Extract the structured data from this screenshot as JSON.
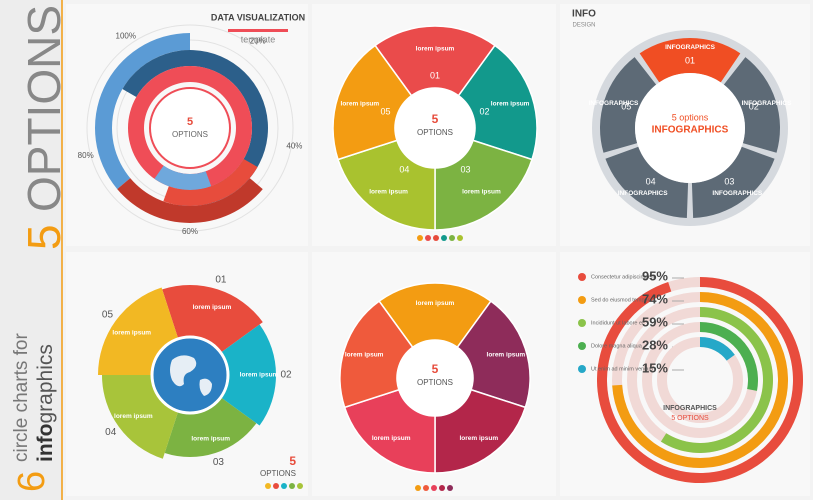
{
  "sidebar": {
    "count": "6",
    "line1": "circle charts for",
    "line2_bold": "info",
    "line2_rest": "graphics",
    "options_number": "5",
    "options_word": "OPTIONS"
  },
  "panels": [
    {
      "title": "DATA VISUALIZATION",
      "subtitle": "template",
      "center_number": "5",
      "center_word": "OPTIONS",
      "ring_labels": [
        "100%",
        "20%",
        "40%",
        "60%",
        "80%"
      ]
    },
    {
      "center_number": "5",
      "center_word": "OPTIONS",
      "segments": [
        {
          "number": "01",
          "text": "lorem ipsum"
        },
        {
          "number": "02",
          "text": "lorem ipsum"
        },
        {
          "number": "03",
          "text": "lorem ipsum"
        },
        {
          "number": "04",
          "text": "lorem ipsum"
        },
        {
          "number": "05",
          "text": "lorem ipsum"
        }
      ]
    },
    {
      "logo": "INFO",
      "logo_sub": "DESIGN",
      "center_top": "5 options",
      "center_bottom": "INFOGRAPHICS",
      "segments": [
        {
          "number": "01",
          "text": "INFOGRAPHICS"
        },
        {
          "number": "02",
          "text": "INFOGRAPHICS"
        },
        {
          "number": "03",
          "text": "INFOGRAPHICS"
        },
        {
          "number": "04",
          "text": "INFOGRAPHICS"
        },
        {
          "number": "05",
          "text": "INFOGRAPHICS"
        }
      ]
    },
    {
      "caption_number": "5",
      "caption_word": "OPTIONS",
      "segments": [
        {
          "number": "01",
          "text": "lorem ipsum"
        },
        {
          "number": "02",
          "text": "lorem ipsum"
        },
        {
          "number": "03",
          "text": "lorem ipsum"
        },
        {
          "number": "04",
          "text": "lorem ipsum"
        },
        {
          "number": "05",
          "text": "lorem ipsum"
        }
      ]
    },
    {
      "center_number": "5",
      "center_word": "OPTIONS",
      "segments": [
        {
          "text": "lorem ipsum"
        },
        {
          "text": "lorem ipsum"
        },
        {
          "text": "lorem ipsum"
        },
        {
          "text": "lorem ipsum"
        },
        {
          "text": "lorem ipsum"
        }
      ]
    },
    {
      "center_top": "INFOGRAPHICS",
      "center_bottom": "5 OPTIONS",
      "items": [
        {
          "text": "Consectetur adipiscing elit",
          "value": 95,
          "label": "95%"
        },
        {
          "text": "Sed do eiusmod tempor",
          "value": 74,
          "label": "74%"
        },
        {
          "text": "Incididunt ut labore et",
          "value": 59,
          "label": "59%"
        },
        {
          "text": "Dolore magna aliqua",
          "value": 28,
          "label": "28%"
        },
        {
          "text": "Ut enim ad minim veniam",
          "value": 15,
          "label": "15%"
        }
      ]
    }
  ]
}
